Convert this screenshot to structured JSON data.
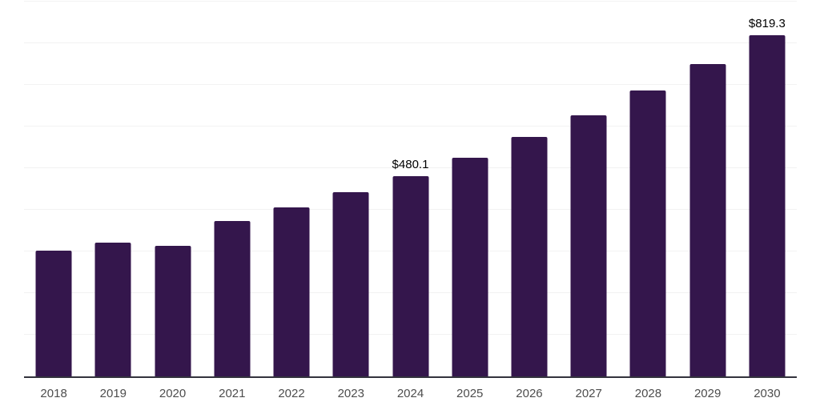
{
  "chart_data": {
    "type": "bar",
    "title": "",
    "xlabel": "",
    "ylabel": "",
    "categories": [
      "2018",
      "2019",
      "2020",
      "2021",
      "2022",
      "2023",
      "2024",
      "2025",
      "2026",
      "2027",
      "2028",
      "2029",
      "2030"
    ],
    "values": [
      302.5,
      321.7,
      314.0,
      373.7,
      405.2,
      442.3,
      480.1,
      525.6,
      575.6,
      627.5,
      687.1,
      750.6,
      819.3
    ],
    "bar_labels": [
      "",
      "",
      "",
      "",
      "",
      "",
      "$480.1",
      "",
      "",
      "",
      "",
      "",
      "$819.3"
    ],
    "value_prefix": "$",
    "ylim": [
      0,
      900
    ],
    "gridline_step": 100,
    "grid": true,
    "legend": "none",
    "y_axis_labels_visible": false
  },
  "colors": {
    "background": "#ffffff",
    "bar": "#34164c",
    "axis": "#33333d",
    "gridline": "#f2f2f2",
    "tick_label": "#4d4d4d",
    "value_label": "#000000"
  }
}
